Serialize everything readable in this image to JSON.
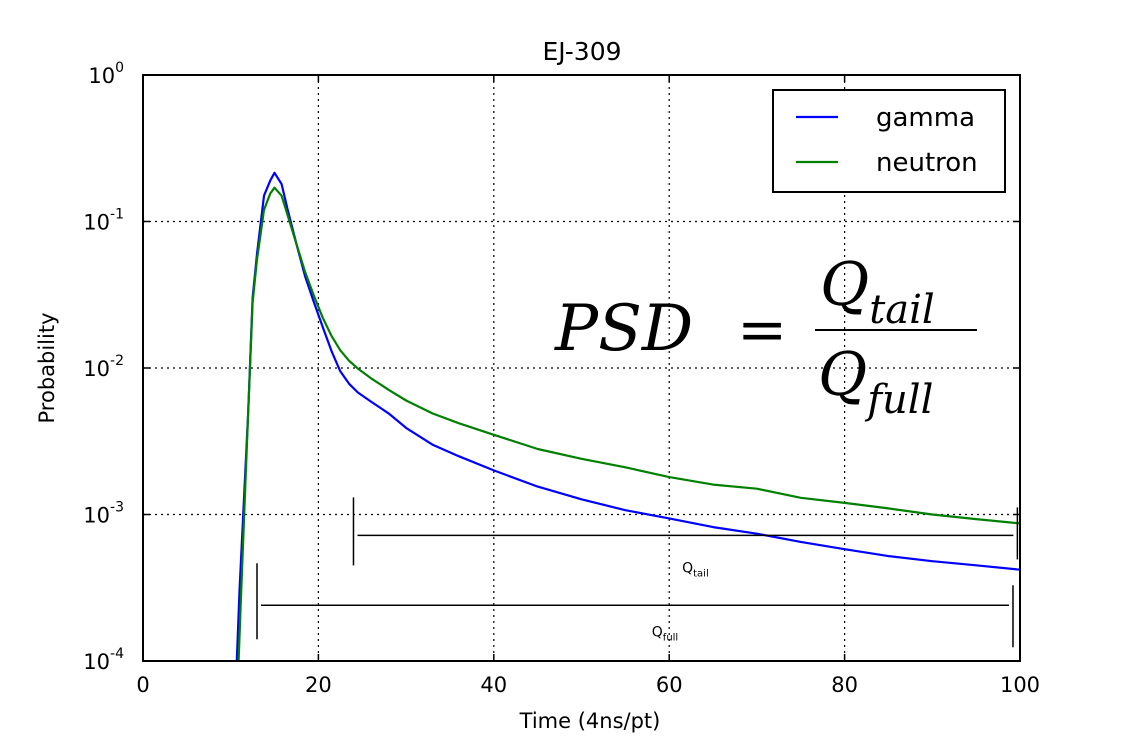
{
  "chart_data": {
    "type": "line",
    "title": "EJ-309",
    "xlabel": "Time (4ns/pt)",
    "ylabel": "Probability",
    "xlim": [
      0,
      100
    ],
    "ylim": [
      0.0001,
      1
    ],
    "yscale": "log",
    "grid": true,
    "grid_style": "dotted",
    "legend": {
      "placement": "top-right",
      "entries": [
        "gamma",
        "neutron"
      ]
    },
    "x_ticks": [
      "0",
      "20",
      "40",
      "60",
      "80",
      "100"
    ],
    "y_ticks": [
      {
        "base": "10",
        "exp": "0",
        "value": 1
      },
      {
        "base": "10",
        "exp": "-1",
        "value": 0.1
      },
      {
        "base": "10",
        "exp": "-2",
        "value": 0.01
      },
      {
        "base": "10",
        "exp": "-3",
        "value": 0.001
      },
      {
        "base": "10",
        "exp": "-4",
        "value": 0.0001
      }
    ],
    "series": [
      {
        "name": "gamma",
        "color": "#0000ff",
        "x": [
          10.7,
          11,
          12,
          12.5,
          13,
          13.8,
          14.5,
          15,
          15.8,
          16.5,
          17.5,
          18.5,
          19.5,
          20.5,
          21.5,
          22.5,
          23.5,
          24.5,
          26,
          28,
          30,
          33,
          36,
          40,
          45,
          50,
          55,
          60,
          65,
          70,
          75,
          80,
          85,
          90,
          95,
          100
        ],
        "y": [
          0.0001,
          0.0003,
          0.005,
          0.03,
          0.06,
          0.15,
          0.19,
          0.215,
          0.18,
          0.12,
          0.07,
          0.042,
          0.028,
          0.019,
          0.013,
          0.0095,
          0.0078,
          0.0068,
          0.0059,
          0.0049,
          0.0039,
          0.003,
          0.0025,
          0.002,
          0.00155,
          0.00127,
          0.00107,
          0.00094,
          0.00082,
          0.00074,
          0.00065,
          0.00058,
          0.00052,
          0.00048,
          0.00045,
          0.00042
        ]
      },
      {
        "name": "neutron",
        "color": "#008000",
        "x": [
          10.9,
          11.2,
          12,
          12.5,
          13,
          13.8,
          14.5,
          15,
          15.8,
          16.5,
          17.5,
          18.5,
          19.5,
          20.5,
          21.5,
          22.5,
          23.5,
          24.5,
          26,
          28,
          30,
          33,
          36,
          40,
          45,
          50,
          55,
          60,
          65,
          70,
          75,
          80,
          85,
          90,
          95,
          100
        ],
        "y": [
          0.0001,
          0.0003,
          0.005,
          0.028,
          0.055,
          0.12,
          0.155,
          0.17,
          0.15,
          0.11,
          0.07,
          0.045,
          0.031,
          0.022,
          0.0165,
          0.0132,
          0.0112,
          0.0099,
          0.0085,
          0.0071,
          0.006,
          0.0049,
          0.0042,
          0.0035,
          0.0028,
          0.0024,
          0.0021,
          0.0018,
          0.0016,
          0.0015,
          0.0013,
          0.0012,
          0.0011,
          0.001,
          0.00093,
          0.00087
        ]
      }
    ],
    "annotations": {
      "formula": {
        "lhs": "PSD",
        "equals": "=",
        "numerator_base": "Q",
        "numerator_sub": "tail",
        "denominator_base": "Q",
        "denominator_sub": "full"
      },
      "tail_window": {
        "label_base": "Q",
        "label_sub": "tail",
        "x_start": 24,
        "x_end": 99.7,
        "y_marker": 0.00072
      },
      "full_window": {
        "label_base": "Q",
        "label_sub": "full",
        "x_start": 13,
        "x_end": 99.2,
        "y_marker": 0.00024
      }
    }
  }
}
